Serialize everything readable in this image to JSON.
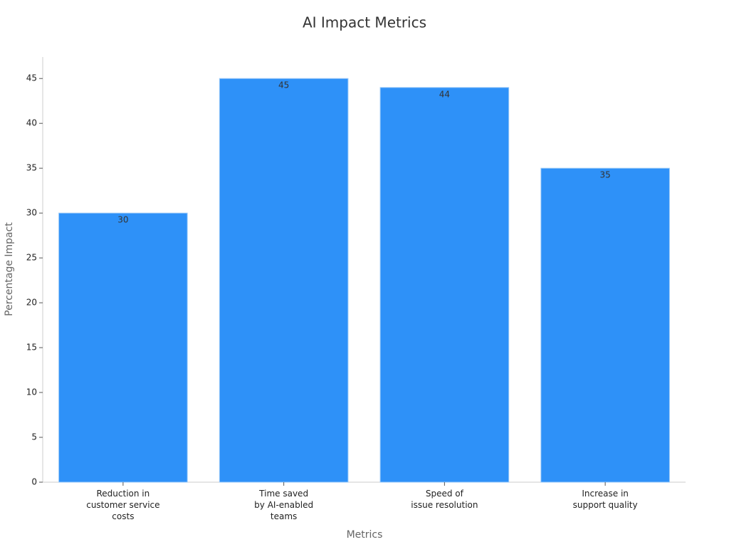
{
  "chart_data": {
    "type": "bar",
    "title": "AI Impact Metrics",
    "x_label": "Metrics",
    "y_label": "Percentage Impact",
    "categories": [
      [
        "Reduction in",
        "customer service",
        "costs"
      ],
      [
        "Time saved",
        "by AI-enabled",
        "teams"
      ],
      [
        "Speed of",
        "issue resolution"
      ],
      [
        "Increase in",
        "support quality"
      ]
    ],
    "values": [
      30,
      45,
      44,
      35
    ],
    "color": "#2e91f8",
    "ylim": [
      0,
      47.4
    ],
    "yticks": [
      0,
      5,
      10,
      15,
      20,
      25,
      30,
      35,
      40,
      45
    ],
    "grid": false
  }
}
